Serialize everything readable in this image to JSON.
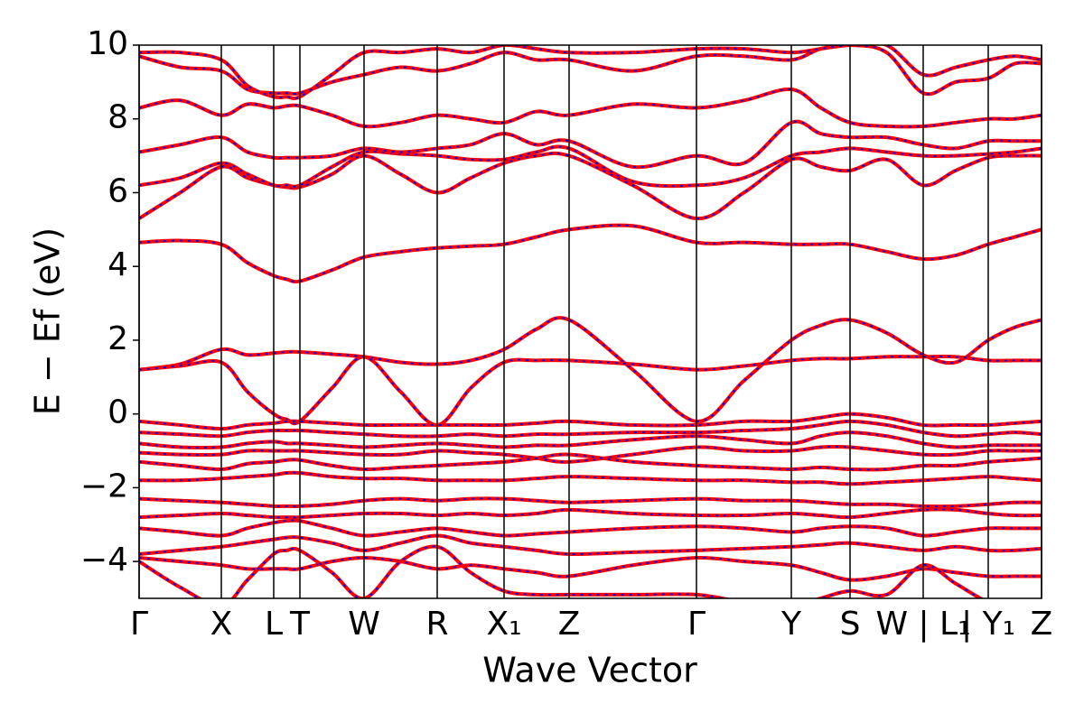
{
  "chart_data": {
    "type": "line",
    "xlabel": "Wave Vector",
    "ylabel": "E − Ef (eV)",
    "xlim": [
      0,
      9.99
    ],
    "ylim": [
      -5,
      10
    ],
    "xticks": [
      {
        "value": 0,
        "label": "Γ"
      },
      {
        "value": 0.91,
        "label": "X"
      },
      {
        "value": 1.49,
        "label": "L"
      },
      {
        "value": 1.78,
        "label": "T"
      },
      {
        "value": 2.49,
        "label": "W"
      },
      {
        "value": 3.3,
        "label": "R"
      },
      {
        "value": 4.04,
        "label": "X₁"
      },
      {
        "value": 4.76,
        "label": "Z"
      },
      {
        "value": 6.17,
        "label": "Γ"
      },
      {
        "value": 7.22,
        "label": "Y"
      },
      {
        "value": 7.87,
        "label": "S"
      },
      {
        "value": 8.68,
        "label": "W | L₁"
      },
      {
        "value": 9.4,
        "label": "| Y₁"
      },
      {
        "value": 9.99,
        "label": "Z"
      }
    ],
    "yticks": [
      {
        "value": -4,
        "label": "−4"
      },
      {
        "value": -2,
        "label": "−2"
      },
      0,
      2,
      4,
      6,
      8,
      10
    ],
    "grid": "x",
    "dash_color": "#0000ff",
    "x": [
      0,
      0.455,
      0.91,
      1.2,
      1.49,
      1.635,
      1.78,
      2.135,
      2.49,
      2.895,
      3.3,
      3.67,
      4.04,
      4.4,
      4.76,
      5.465,
      6.17,
      6.695,
      7.22,
      7.545,
      7.87,
      8.275,
      8.68,
      9.04,
      9.4,
      9.695,
      9.99
    ],
    "series": [
      {
        "color": "#ff0000",
        "values": [
          4.65,
          4.7,
          4.6,
          4.1,
          3.75,
          3.65,
          3.6,
          3.9,
          4.25,
          4.4,
          4.5,
          4.55,
          4.6,
          4.8,
          5.0,
          5.1,
          4.65,
          4.65,
          4.6,
          4.6,
          4.6,
          4.4,
          4.2,
          4.3,
          4.6,
          4.8,
          5.0
        ]
      },
      {
        "color": "#ff0000",
        "values": [
          1.2,
          1.35,
          1.75,
          1.6,
          1.65,
          1.68,
          1.68,
          1.62,
          1.55,
          1.4,
          1.35,
          1.45,
          1.75,
          2.3,
          2.55,
          1.2,
          -0.2,
          0.9,
          2.0,
          2.4,
          2.55,
          2.2,
          1.6,
          1.4,
          2.0,
          2.35,
          2.55
        ]
      },
      {
        "color": "#ff0000",
        "values": [
          1.2,
          1.3,
          1.4,
          0.6,
          0.0,
          -0.15,
          -0.2,
          0.7,
          1.55,
          0.6,
          -0.3,
          0.7,
          1.4,
          1.45,
          1.45,
          1.35,
          1.2,
          1.3,
          1.45,
          1.5,
          1.5,
          1.55,
          1.55,
          1.55,
          1.45,
          1.45,
          1.45
        ]
      },
      {
        "color": "#ff0000",
        "values": [
          5.3,
          6.0,
          6.7,
          6.4,
          6.2,
          6.15,
          6.15,
          6.5,
          7.0,
          6.5,
          6.0,
          6.4,
          6.8,
          7.0,
          7.0,
          6.2,
          5.3,
          6.0,
          6.9,
          6.7,
          6.6,
          6.9,
          6.2,
          6.6,
          6.95,
          7.0,
          7.0
        ]
      },
      {
        "color": "#ff0000",
        "values": [
          6.2,
          6.4,
          6.8,
          6.5,
          6.2,
          6.2,
          6.2,
          6.7,
          7.1,
          7.05,
          7.0,
          6.9,
          6.9,
          7.1,
          7.2,
          6.3,
          6.2,
          6.4,
          7.0,
          7.1,
          7.2,
          7.1,
          7.0,
          7.0,
          7.05,
          7.1,
          7.2
        ]
      },
      {
        "color": "#ff0000",
        "values": [
          7.1,
          7.3,
          7.5,
          7.1,
          6.95,
          6.95,
          6.95,
          7.0,
          7.2,
          7.1,
          7.2,
          7.3,
          7.6,
          7.3,
          7.4,
          6.7,
          7.0,
          6.8,
          7.9,
          7.6,
          7.5,
          7.5,
          7.3,
          7.2,
          7.4,
          7.4,
          7.4
        ]
      },
      {
        "color": "#ff0000",
        "values": [
          8.3,
          8.5,
          8.1,
          8.4,
          8.3,
          8.35,
          8.35,
          8.1,
          7.8,
          7.9,
          8.1,
          8.0,
          7.9,
          8.2,
          8.1,
          8.4,
          8.3,
          8.5,
          8.8,
          8.3,
          7.9,
          7.8,
          7.8,
          7.9,
          8.0,
          8.0,
          8.1
        ]
      },
      {
        "color": "#ff0000",
        "values": [
          9.7,
          9.4,
          9.3,
          8.8,
          8.7,
          8.7,
          8.7,
          9.0,
          9.2,
          9.4,
          9.3,
          9.5,
          9.8,
          9.6,
          9.6,
          9.3,
          9.7,
          9.7,
          9.6,
          9.9,
          10.0,
          9.8,
          8.7,
          9.0,
          9.1,
          9.5,
          9.5
        ]
      },
      {
        "color": "#ff0000",
        "values": [
          9.8,
          9.8,
          9.6,
          8.9,
          8.6,
          8.6,
          8.6,
          9.2,
          9.8,
          9.8,
          9.9,
          9.8,
          10.0,
          9.9,
          9.8,
          9.8,
          9.9,
          9.9,
          9.8,
          9.9,
          10.0,
          10.0,
          9.2,
          9.4,
          9.6,
          9.7,
          9.6
        ]
      },
      {
        "color": "#ff0000",
        "values": [
          -0.2,
          -0.3,
          -0.4,
          -0.3,
          -0.25,
          -0.2,
          -0.2,
          -0.25,
          -0.3,
          -0.3,
          -0.3,
          -0.3,
          -0.3,
          -0.25,
          -0.2,
          -0.3,
          -0.3,
          -0.2,
          -0.2,
          -0.1,
          0.0,
          -0.1,
          -0.3,
          -0.3,
          -0.3,
          -0.25,
          -0.2
        ]
      },
      {
        "color": "#ff0000",
        "values": [
          -0.5,
          -0.55,
          -0.6,
          -0.5,
          -0.45,
          -0.45,
          -0.45,
          -0.5,
          -0.55,
          -0.6,
          -0.6,
          -0.55,
          -0.6,
          -0.55,
          -0.55,
          -0.5,
          -0.5,
          -0.45,
          -0.4,
          -0.3,
          -0.2,
          -0.3,
          -0.5,
          -0.6,
          -0.55,
          -0.5,
          -0.55
        ]
      },
      {
        "color": "#ff0000",
        "values": [
          -0.8,
          -0.9,
          -0.9,
          -0.8,
          -0.75,
          -0.8,
          -0.8,
          -0.85,
          -0.9,
          -0.85,
          -0.8,
          -0.85,
          -0.9,
          -0.85,
          -0.85,
          -0.7,
          -0.6,
          -0.7,
          -0.8,
          -0.6,
          -0.5,
          -0.6,
          -0.8,
          -0.9,
          -0.85,
          -0.85,
          -0.85
        ]
      },
      {
        "color": "#ff0000",
        "values": [
          -1.05,
          -1.1,
          -1.1,
          -1.0,
          -1.0,
          -1.0,
          -1.0,
          -1.05,
          -1.1,
          -1.1,
          -1.0,
          -1.05,
          -1.1,
          -1.2,
          -1.3,
          -1.1,
          -0.9,
          -1.0,
          -1.0,
          -0.9,
          -0.9,
          -1.0,
          -1.1,
          -1.1,
          -1.0,
          -1.0,
          -1.0
        ]
      },
      {
        "color": "#ff0000",
        "values": [
          -1.3,
          -1.4,
          -1.5,
          -1.35,
          -1.3,
          -1.25,
          -1.25,
          -1.4,
          -1.5,
          -1.45,
          -1.4,
          -1.35,
          -1.3,
          -1.2,
          -1.1,
          -1.3,
          -1.4,
          -1.45,
          -1.5,
          -1.45,
          -1.5,
          -1.5,
          -1.4,
          -1.4,
          -1.3,
          -1.25,
          -1.2
        ]
      },
      {
        "color": "#ff0000",
        "values": [
          -1.8,
          -1.8,
          -1.75,
          -1.7,
          -1.65,
          -1.6,
          -1.6,
          -1.7,
          -1.75,
          -1.75,
          -1.8,
          -1.8,
          -1.8,
          -1.75,
          -1.7,
          -1.75,
          -1.8,
          -1.8,
          -1.85,
          -1.85,
          -1.9,
          -1.85,
          -1.8,
          -1.75,
          -1.7,
          -1.75,
          -1.8
        ]
      },
      {
        "color": "#ff0000",
        "values": [
          -2.3,
          -2.35,
          -2.4,
          -2.45,
          -2.5,
          -2.5,
          -2.5,
          -2.45,
          -2.35,
          -2.3,
          -2.35,
          -2.3,
          -2.3,
          -2.35,
          -2.4,
          -2.35,
          -2.3,
          -2.35,
          -2.35,
          -2.4,
          -2.45,
          -2.45,
          -2.5,
          -2.5,
          -2.45,
          -2.4,
          -2.4
        ]
      },
      {
        "color": "#ff0000",
        "values": [
          -2.8,
          -2.75,
          -2.7,
          -2.75,
          -2.8,
          -2.8,
          -2.8,
          -2.75,
          -2.7,
          -2.7,
          -2.75,
          -2.7,
          -2.75,
          -2.7,
          -2.6,
          -2.7,
          -2.75,
          -2.75,
          -2.7,
          -2.75,
          -2.8,
          -2.7,
          -2.6,
          -2.6,
          -2.7,
          -2.75,
          -2.75
        ]
      },
      {
        "color": "#ff0000",
        "values": [
          -3.1,
          -3.2,
          -3.3,
          -3.1,
          -2.95,
          -2.9,
          -2.9,
          -3.1,
          -3.3,
          -3.2,
          -3.1,
          -3.2,
          -3.3,
          -3.25,
          -3.2,
          -3.1,
          -3.05,
          -3.1,
          -3.2,
          -3.1,
          -3.05,
          -3.1,
          -3.3,
          -3.2,
          -3.1,
          -3.1,
          -3.1
        ]
      },
      {
        "color": "#ff0000",
        "values": [
          -3.8,
          -3.7,
          -3.6,
          -3.5,
          -3.4,
          -3.35,
          -3.35,
          -3.5,
          -3.7,
          -3.5,
          -3.3,
          -3.5,
          -3.6,
          -3.7,
          -3.8,
          -3.75,
          -3.7,
          -3.65,
          -3.6,
          -3.55,
          -3.5,
          -3.6,
          -3.7,
          -3.6,
          -3.7,
          -3.7,
          -3.65
        ]
      },
      {
        "color": "#ff0000",
        "values": [
          -3.9,
          -4.0,
          -4.1,
          -4.2,
          -4.2,
          -4.2,
          -4.2,
          -4.0,
          -3.9,
          -4.0,
          -4.2,
          -4.1,
          -4.2,
          -4.3,
          -4.4,
          -4.1,
          -3.9,
          -4.0,
          -4.1,
          -4.3,
          -4.5,
          -4.4,
          -4.2,
          -4.3,
          -4.4,
          -4.4,
          -4.4
        ]
      },
      {
        "color": "#ff0000",
        "values": [
          -4.0,
          -4.7,
          -5.2,
          -4.5,
          -3.8,
          -3.7,
          -3.7,
          -4.3,
          -5.0,
          -4.0,
          -3.6,
          -4.3,
          -4.8,
          -4.9,
          -4.9,
          -4.9,
          -4.9,
          -5.1,
          -5.2,
          -5.0,
          -4.8,
          -4.9,
          -4.1,
          -4.6,
          -5.1,
          -5.2,
          -5.3
        ]
      }
    ]
  }
}
